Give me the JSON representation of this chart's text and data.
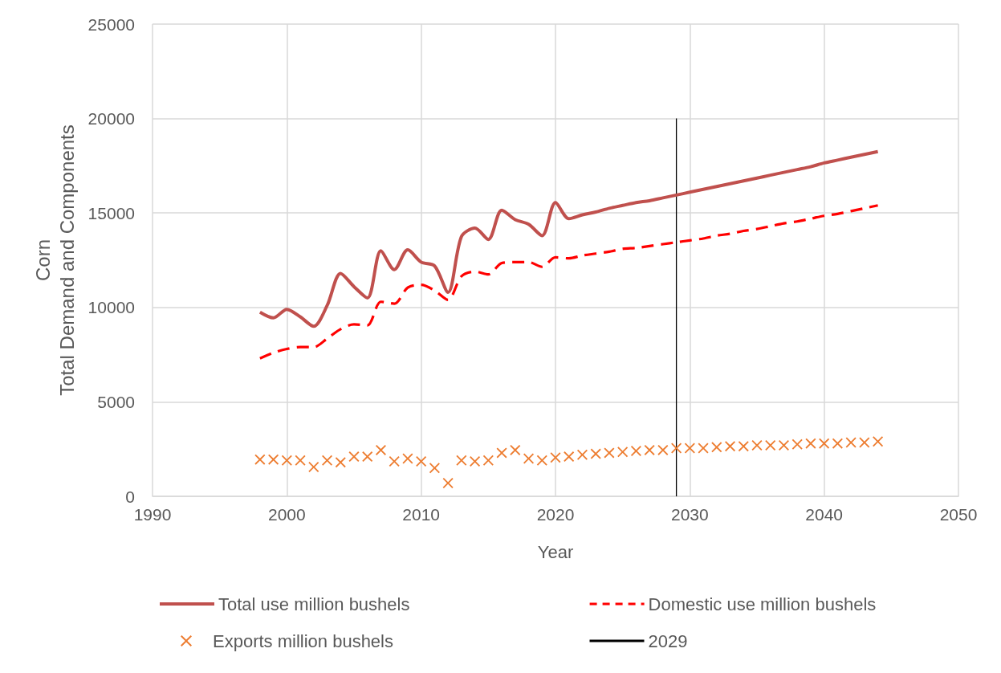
{
  "chart_data": {
    "type": "line",
    "xlabel": "Year",
    "ylabel": "Corn\nTotal Demand and Components",
    "x": [
      1998,
      1999,
      2000,
      2001,
      2002,
      2003,
      2004,
      2005,
      2006,
      2007,
      2008,
      2009,
      2010,
      2011,
      2012,
      2013,
      2014,
      2015,
      2016,
      2017,
      2018,
      2019,
      2020,
      2021,
      2022,
      2023,
      2024,
      2025,
      2026,
      2027,
      2028,
      2029,
      2030,
      2031,
      2032,
      2033,
      2034,
      2035,
      2036,
      2037,
      2038,
      2039,
      2040,
      2041,
      2042,
      2043,
      2044
    ],
    "series": [
      {
        "name": "Total use million bushels",
        "color": "#c0504d",
        "line_style": "solid",
        "values": [
          9750,
          9450,
          9900,
          9500,
          9000,
          10100,
          11800,
          11100,
          10500,
          13000,
          12000,
          13050,
          12400,
          12200,
          10800,
          13750,
          14200,
          13600,
          15150,
          14650,
          14400,
          13800,
          15550,
          14700,
          14900,
          15050,
          15250,
          15400,
          15550,
          15650,
          15800,
          15950,
          16100,
          16250,
          16400,
          16550,
          16700,
          16850,
          17000,
          17150,
          17300,
          17450,
          17650,
          17800,
          17950,
          18100,
          18250
        ]
      },
      {
        "name": "Domestic use million bushels",
        "color": "#ff0000",
        "line_style": "dashed",
        "values": [
          7300,
          7600,
          7800,
          7900,
          7900,
          8350,
          8850,
          9100,
          9050,
          10300,
          10200,
          11050,
          11200,
          10900,
          10400,
          11650,
          11900,
          11750,
          12350,
          12400,
          12400,
          12150,
          12650,
          12600,
          12750,
          12850,
          12950,
          13100,
          13150,
          13250,
          13350,
          13450,
          13550,
          13650,
          13800,
          13900,
          14050,
          14150,
          14300,
          14450,
          14550,
          14700,
          14850,
          14950,
          15100,
          15250,
          15400
        ]
      },
      {
        "name": "Exports million bushels",
        "type": "scatter",
        "color": "#ed7d31",
        "marker": "cross",
        "values": [
          1950,
          1950,
          1900,
          1900,
          1550,
          1900,
          1800,
          2100,
          2100,
          2450,
          1850,
          2000,
          1850,
          1500,
          700,
          1900,
          1850,
          1900,
          2300,
          2450,
          2000,
          1900,
          2050,
          2100,
          2200,
          2250,
          2300,
          2350,
          2400,
          2450,
          2450,
          2550,
          2550,
          2550,
          2600,
          2650,
          2650,
          2700,
          2700,
          2700,
          2750,
          2800,
          2800,
          2800,
          2850,
          2850,
          2900
        ]
      },
      {
        "name": "2029",
        "color": "#000000",
        "line_style": "solid",
        "x": [
          2029,
          2029
        ],
        "values": [
          0,
          20000
        ]
      }
    ],
    "xlim": [
      1990,
      2050
    ],
    "xticks": [
      1990,
      2000,
      2010,
      2020,
      2030,
      2040,
      2050
    ],
    "ylim": [
      0,
      25000
    ],
    "yticks": [
      0,
      5000,
      10000,
      15000,
      20000,
      25000
    ],
    "grid": true,
    "legend": "bottom"
  }
}
